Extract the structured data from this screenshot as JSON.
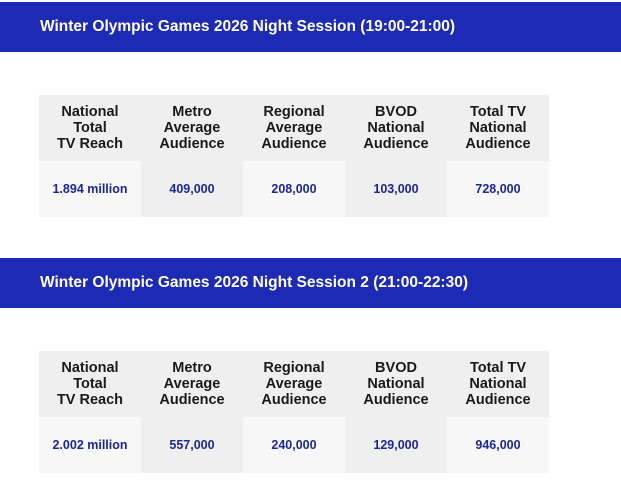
{
  "sessions": [
    {
      "title": "Winter Olympic Games 2026 Night Session (19:00-21:00)",
      "headers": [
        "National\nTotal\nTV Reach",
        "Metro\nAverage\nAudience",
        "Regional\nAverage\nAudience",
        "BVOD\nNational\nAudience",
        "Total TV\nNational\nAudience"
      ],
      "values": [
        "1.894 million",
        "409,000",
        "208,000",
        "103,000",
        "728,000"
      ]
    },
    {
      "title": "Winter Olympic Games 2026 Night Session 2 (21:00-22:30)",
      "headers": [
        "National\nTotal\nTV Reach",
        "Metro\nAverage\nAudience",
        "Regional\nAverage\nAudience",
        "BVOD\nNational\nAudience",
        "Total TV\nNational\nAudience"
      ],
      "values": [
        "2.002 million",
        "557,000",
        "240,000",
        "129,000",
        "946,000"
      ]
    }
  ],
  "colors": {
    "banner": "#1d2ab3",
    "value_text": "#1d2796",
    "header_bg": "#efefef",
    "cell_light": "#f7f7f7"
  }
}
